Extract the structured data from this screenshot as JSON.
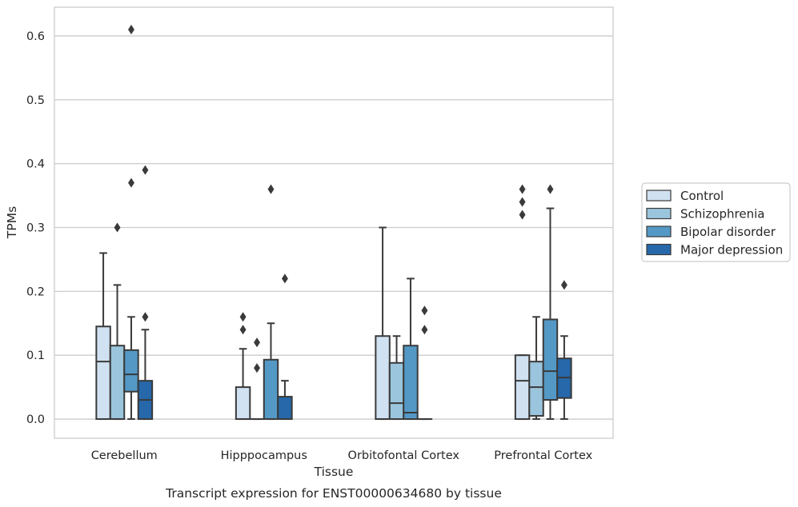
{
  "chart_data": {
    "type": "boxplot",
    "title": "",
    "caption": "Transcript expression for ENST00000634680 by tissue",
    "xlabel": "Tissue",
    "ylabel": "TPMs",
    "ylim": [
      -0.03,
      0.645
    ],
    "yticks": [
      0.0,
      0.1,
      0.2,
      0.3,
      0.4,
      0.5,
      0.6
    ],
    "ytick_labels": [
      "0.0",
      "0.1",
      "0.2",
      "0.3",
      "0.4",
      "0.5",
      "0.6"
    ],
    "categories": [
      "Cerebellum",
      "Hipppocampus",
      "Orbitofontal Cortex",
      "Prefrontal Cortex"
    ],
    "grid": true,
    "legend_position": "right",
    "series": [
      {
        "name": "Control",
        "color": "#d0e1f1",
        "boxes": [
          {
            "q1": 0.0,
            "median": 0.09,
            "q3": 0.145,
            "whisker_low": 0.0,
            "whisker_high": 0.26,
            "outliers": []
          },
          {
            "q1": 0.0,
            "median": 0.0,
            "q3": 0.05,
            "whisker_low": 0.0,
            "whisker_high": 0.11,
            "outliers": [
              0.14,
              0.16
            ]
          },
          {
            "q1": 0.0,
            "median": 0.0,
            "q3": 0.13,
            "whisker_low": 0.0,
            "whisker_high": 0.3,
            "outliers": []
          },
          {
            "q1": 0.0,
            "median": 0.06,
            "q3": 0.1,
            "whisker_low": 0.0,
            "whisker_high": 0.1,
            "outliers": [
              0.32,
              0.34,
              0.36
            ]
          }
        ]
      },
      {
        "name": "Schizophrenia",
        "color": "#9ac5dd",
        "boxes": [
          {
            "q1": 0.0,
            "median": 0.0,
            "q3": 0.115,
            "whisker_low": 0.0,
            "whisker_high": 0.21,
            "outliers": [
              0.3
            ]
          },
          {
            "q1": 0.0,
            "median": 0.0,
            "q3": 0.0,
            "whisker_low": 0.0,
            "whisker_high": 0.0,
            "outliers": [
              0.08,
              0.12
            ]
          },
          {
            "q1": 0.0,
            "median": 0.025,
            "q3": 0.088,
            "whisker_low": 0.0,
            "whisker_high": 0.13,
            "outliers": []
          },
          {
            "q1": 0.005,
            "median": 0.05,
            "q3": 0.09,
            "whisker_low": 0.0,
            "whisker_high": 0.16,
            "outliers": []
          }
        ]
      },
      {
        "name": "Bipolar disorder",
        "color": "#5499c6",
        "boxes": [
          {
            "q1": 0.043,
            "median": 0.07,
            "q3": 0.108,
            "whisker_low": 0.0,
            "whisker_high": 0.16,
            "outliers": [
              0.37,
              0.61
            ]
          },
          {
            "q1": 0.0,
            "median": 0.0,
            "q3": 0.093,
            "whisker_low": 0.0,
            "whisker_high": 0.15,
            "outliers": [
              0.36
            ]
          },
          {
            "q1": 0.0,
            "median": 0.01,
            "q3": 0.115,
            "whisker_low": 0.0,
            "whisker_high": 0.22,
            "outliers": []
          },
          {
            "q1": 0.03,
            "median": 0.075,
            "q3": 0.156,
            "whisker_low": 0.0,
            "whisker_high": 0.33,
            "outliers": [
              0.36
            ]
          }
        ]
      },
      {
        "name": "Major depression",
        "color": "#2668aa",
        "boxes": [
          {
            "q1": 0.0,
            "median": 0.03,
            "q3": 0.06,
            "whisker_low": 0.0,
            "whisker_high": 0.14,
            "outliers": [
              0.16,
              0.39
            ]
          },
          {
            "q1": 0.0,
            "median": 0.0,
            "q3": 0.035,
            "whisker_low": 0.0,
            "whisker_high": 0.06,
            "outliers": [
              0.22
            ]
          },
          {
            "q1": 0.0,
            "median": 0.0,
            "q3": 0.0,
            "whisker_low": 0.0,
            "whisker_high": 0.0,
            "outliers": [
              0.14,
              0.17
            ]
          },
          {
            "q1": 0.033,
            "median": 0.065,
            "q3": 0.095,
            "whisker_low": 0.0,
            "whisker_high": 0.13,
            "outliers": [
              0.21
            ]
          }
        ]
      }
    ]
  }
}
